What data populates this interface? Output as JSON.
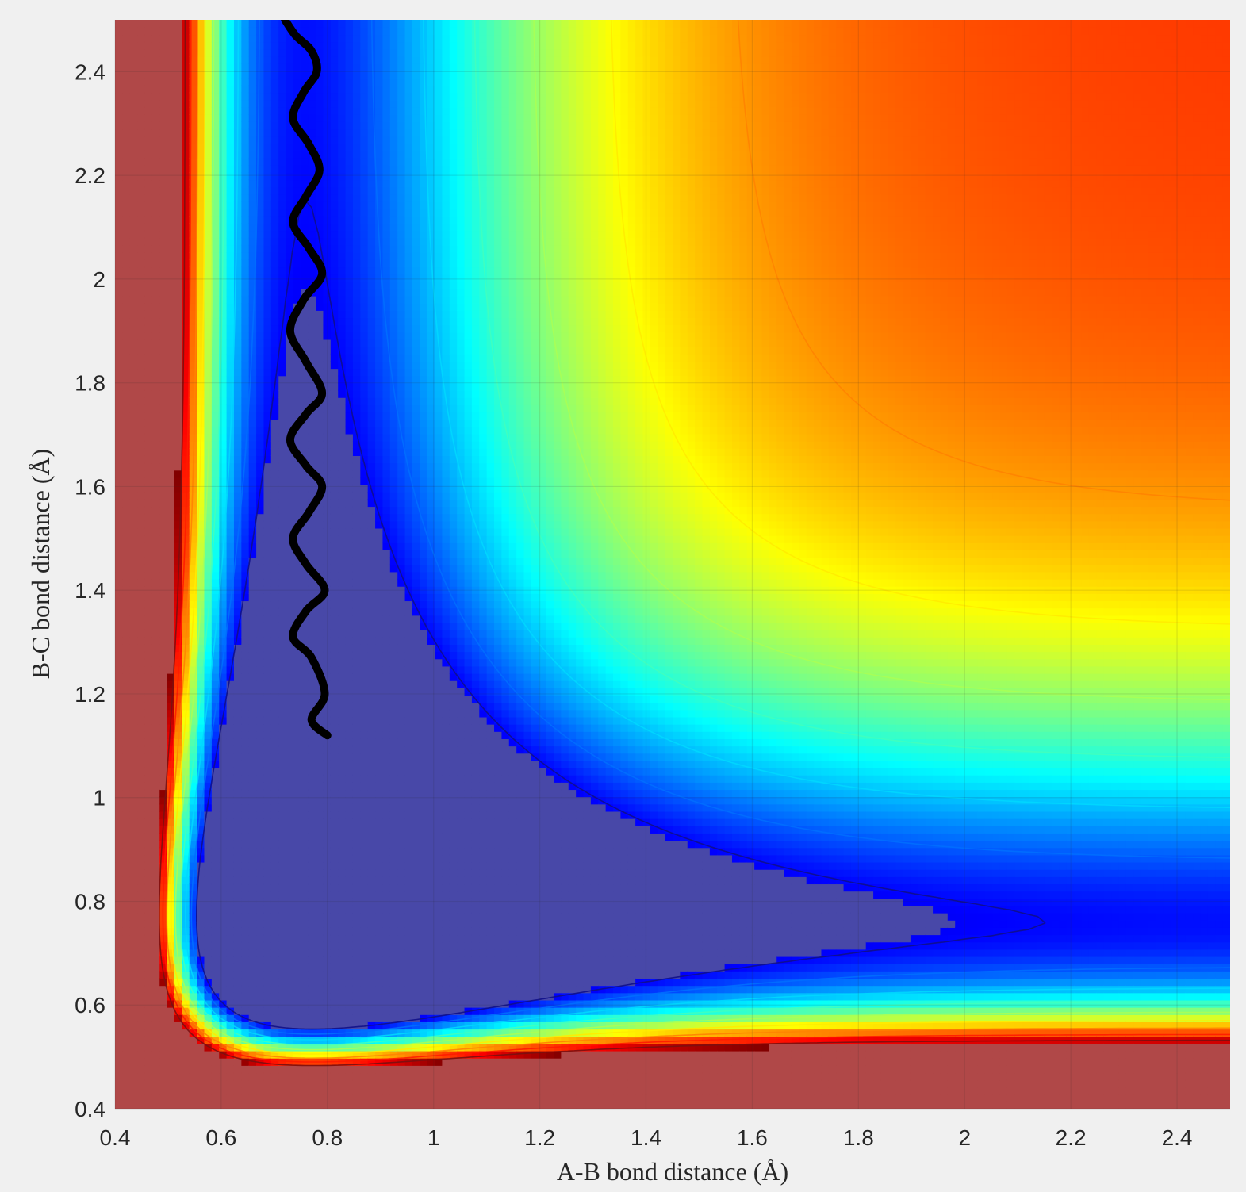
{
  "chart_data": {
    "type": "contour",
    "title": "",
    "xlabel": "A-B bond distance (Å)",
    "ylabel": "B-C bond distance (Å)",
    "xlim": [
      0.4,
      2.5
    ],
    "ylim": [
      0.4,
      2.5
    ],
    "grid": true,
    "colormap": "jet",
    "colors": {
      "plateau": "#b04848",
      "well": "#4848a8",
      "trajectory": "#000000"
    },
    "x_ticks": [
      {
        "value": 0.4,
        "label": "0.4"
      },
      {
        "value": 0.6,
        "label": "0.6"
      },
      {
        "value": 0.8,
        "label": "0.8"
      },
      {
        "value": 1.0,
        "label": "1"
      },
      {
        "value": 1.2,
        "label": "1.2"
      },
      {
        "value": 1.4,
        "label": "1.4"
      },
      {
        "value": 1.6,
        "label": "1.6"
      },
      {
        "value": 1.8,
        "label": "1.8"
      },
      {
        "value": 2.0,
        "label": "2"
      },
      {
        "value": 2.2,
        "label": "2.2"
      },
      {
        "value": 2.4,
        "label": "2.4"
      }
    ],
    "y_ticks": [
      {
        "value": 0.4,
        "label": "0.4"
      },
      {
        "value": 0.6,
        "label": "0.6"
      },
      {
        "value": 0.8,
        "label": "0.8"
      },
      {
        "value": 1.0,
        "label": "1"
      },
      {
        "value": 1.2,
        "label": "1.2"
      },
      {
        "value": 1.4,
        "label": "1.4"
      },
      {
        "value": 1.6,
        "label": "1.6"
      },
      {
        "value": 1.8,
        "label": "1.8"
      },
      {
        "value": 2.0,
        "label": "2"
      },
      {
        "value": 2.2,
        "label": "2.2"
      },
      {
        "value": 2.4,
        "label": "2.4"
      }
    ],
    "trajectory": {
      "x": [
        0.8,
        0.77,
        0.795,
        0.77,
        0.735,
        0.76,
        0.795,
        0.76,
        0.735,
        0.765,
        0.79,
        0.76,
        0.73,
        0.76,
        0.79,
        0.76,
        0.73,
        0.755,
        0.79,
        0.765,
        0.735,
        0.76,
        0.785,
        0.765,
        0.735,
        0.755,
        0.78,
        0.77,
        0.74,
        0.72
      ],
      "y": [
        1.12,
        1.15,
        1.2,
        1.27,
        1.31,
        1.36,
        1.4,
        1.45,
        1.5,
        1.55,
        1.6,
        1.64,
        1.69,
        1.74,
        1.78,
        1.84,
        1.9,
        1.96,
        2.01,
        2.06,
        2.11,
        2.16,
        2.21,
        2.26,
        2.31,
        2.36,
        2.4,
        2.44,
        2.47,
        2.5
      ]
    }
  }
}
